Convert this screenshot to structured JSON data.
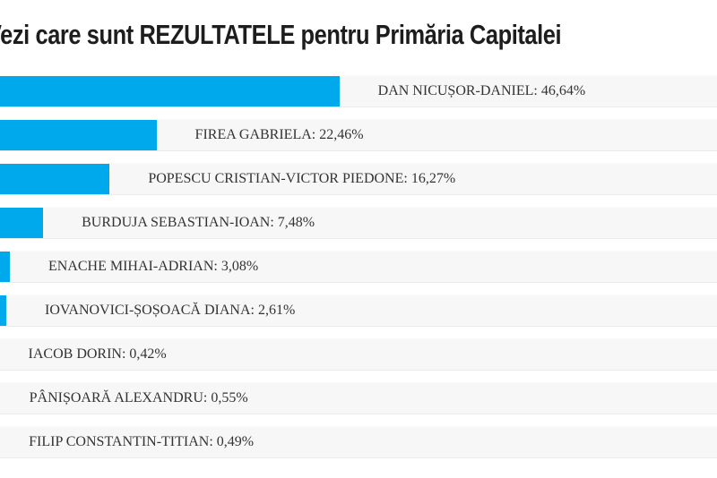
{
  "header": {
    "title": "Vezi care sunt REZULTATELE pentru Primăria Capitalei"
  },
  "chart_data": {
    "type": "bar",
    "orientation": "horizontal",
    "title": "Vezi care sunt REZULTATELE pentru Primăria Capitalei",
    "categories": [
      "DAN NICUȘOR-DANIEL",
      "FIREA GABRIELA",
      "POPESCU CRISTIAN-VICTOR PIEDONE",
      "BURDUJA SEBASTIAN-IOAN",
      "ENACHE MIHAI-ADRIAN",
      "IOVANOVICI-ȘOȘOACĂ DIANA",
      "IACOB DORIN",
      "PÂNIȘOARĂ ALEXANDRU",
      "FILIP CONSTANTIN-TITIAN"
    ],
    "values": [
      46.64,
      22.46,
      16.27,
      7.48,
      3.08,
      2.61,
      0.42,
      0.55,
      0.49
    ],
    "value_labels": [
      "46,64%",
      "22,46%",
      "16,27%",
      "7,48%",
      "3,08%",
      "2,61%",
      "0,42%",
      "0,55%",
      "0,49%"
    ],
    "label_separator": ": ",
    "xlim": [
      0,
      100
    ],
    "grid": false,
    "legend": "none",
    "bar_color": "#00a8ec",
    "row_background": "#f7f7f7",
    "label_color": "#333333",
    "title_color": "#1d1d1d"
  }
}
